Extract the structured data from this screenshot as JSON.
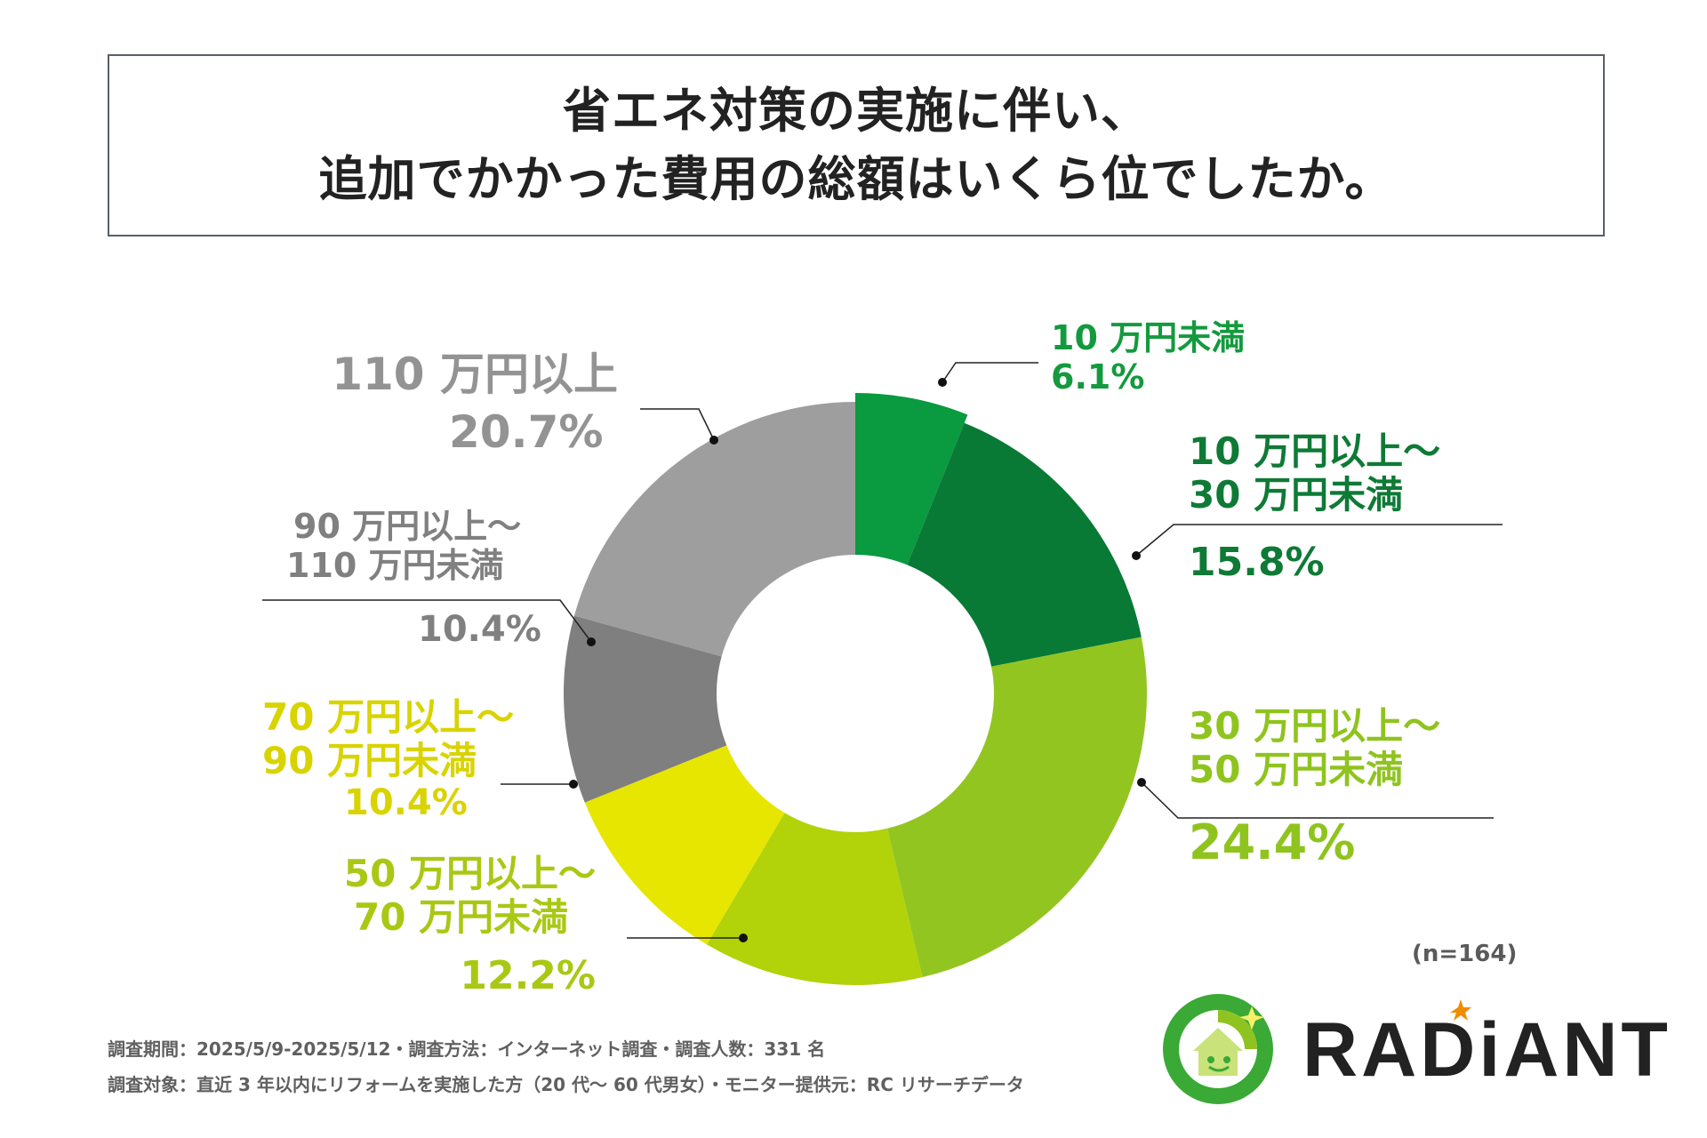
{
  "title": {
    "line1": "省エネ対策の実施に伴い、",
    "line2": "追加でかかった費用の総額はいくら位でしたか。"
  },
  "chart_data": {
    "type": "pie",
    "donut": true,
    "start": "12 o'clock, clockwise",
    "slices": [
      {
        "label": "10 万円未満",
        "label_lines": [
          "10 万円未満"
        ],
        "value": 6.1,
        "pct_text": "6.1%",
        "color": "#0a9a40",
        "label_color": "#149a3e"
      },
      {
        "label": "10 万円以上～30 万円未満",
        "label_lines": [
          "10 万円以上～",
          "30 万円未満"
        ],
        "value": 15.8,
        "pct_text": "15.8%",
        "color": "#087a36",
        "label_color": "#0e7a36"
      },
      {
        "label": "30 万円以上～50 万円未満",
        "label_lines": [
          "30 万円以上～",
          "50 万円未満"
        ],
        "value": 24.4,
        "pct_text": "24.4%",
        "color": "#93c521",
        "label_color": "#8fc41e"
      },
      {
        "label": "50 万円以上～70 万円未満",
        "label_lines": [
          "50 万円以上～",
          "70 万円未満"
        ],
        "value": 12.2,
        "pct_text": "12.2%",
        "color": "#b2d20a",
        "label_color": "#a9c814"
      },
      {
        "label": "70 万円以上～90 万円未満",
        "label_lines": [
          "70 万円以上～",
          "90 万円未満"
        ],
        "value": 10.4,
        "pct_text": "10.4%",
        "color": "#e6e600",
        "label_color": "#d9d300"
      },
      {
        "label": "90 万円以上～110 万円未満",
        "label_lines": [
          "90 万円以上～",
          "110 万円未満"
        ],
        "value": 10.4,
        "pct_text": "10.4%",
        "color": "#7f7f7f",
        "label_color": "#808080"
      },
      {
        "label": "110 万円以上",
        "label_lines": [
          "110 万円以上"
        ],
        "value": 20.7,
        "pct_text": "20.7%",
        "color": "#9e9e9e",
        "label_color": "#939393"
      }
    ],
    "n": "(n=164)"
  },
  "footer": {
    "line1": "調査期間：2025/5/9-2025/5/12・調査方法：インターネット調査・調査人数：331 名",
    "line2": "調査対象：直近 3 年以内にリフォームを実施した方（20 代～ 60 代男女）・モニター提供元：RC リサーチデータ"
  },
  "logo": {
    "text": "RADiANT",
    "star_color": "#f08c00",
    "ring_color": "#3aa935"
  }
}
